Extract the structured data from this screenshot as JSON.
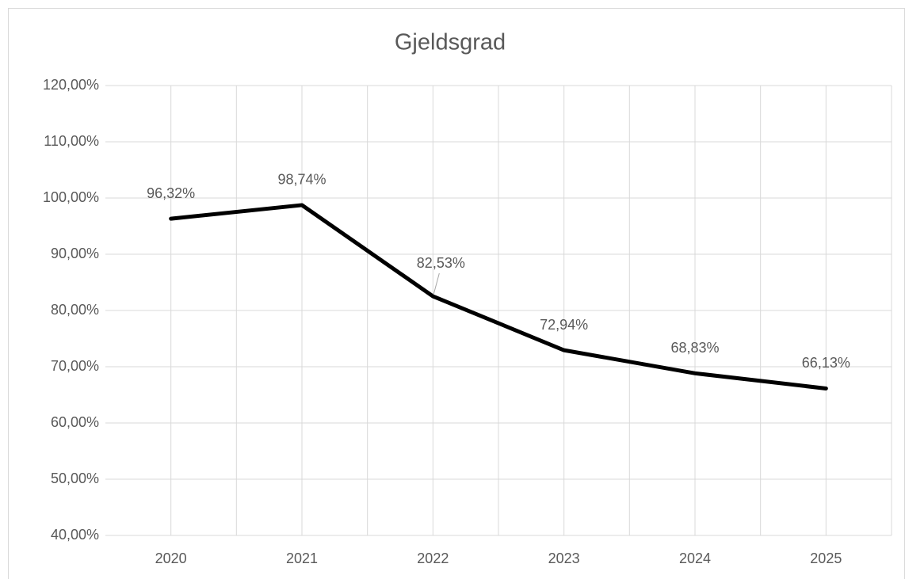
{
  "chart_data": {
    "type": "line",
    "title": "Gjeldsgrad",
    "categories": [
      "2020",
      "2021",
      "2022",
      "2023",
      "2024",
      "2025"
    ],
    "values": [
      96.32,
      98.74,
      82.53,
      72.94,
      68.83,
      66.13
    ],
    "value_labels": [
      "96,32%",
      "98,74%",
      "82,53%",
      "72,94%",
      "68,83%",
      "66,13%"
    ],
    "color": "#000000",
    "ylim": [
      40,
      120
    ],
    "yticks": [
      {
        "value": 40,
        "label": "40,00%"
      },
      {
        "value": 50,
        "label": "50,00%"
      },
      {
        "value": 60,
        "label": "60,00%"
      },
      {
        "value": 70,
        "label": "70,00%"
      },
      {
        "value": 80,
        "label": "80,00%"
      },
      {
        "value": 90,
        "label": "90,00%"
      },
      {
        "value": 100,
        "label": "100,00%"
      },
      {
        "value": 110,
        "label": "110,00%"
      },
      {
        "value": 120,
        "label": "120,00%"
      }
    ],
    "grid": true
  }
}
